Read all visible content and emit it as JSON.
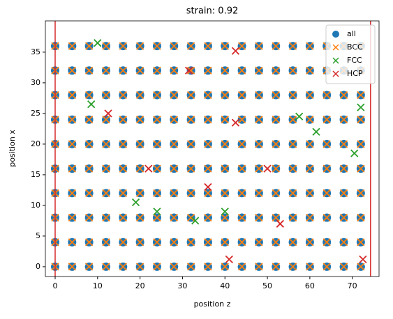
{
  "chart_data": {
    "type": "scatter",
    "title": "strain: 0.92",
    "xlabel": "position z",
    "ylabel": "position x",
    "xlim": [
      -2.3,
      76.3
    ],
    "ylim": [
      -1.6,
      40.1
    ],
    "xticks": [
      0,
      10,
      20,
      30,
      40,
      50,
      60,
      70
    ],
    "yticks": [
      0,
      5,
      10,
      15,
      20,
      25,
      30,
      35
    ],
    "legend": "upper right",
    "vlines": {
      "color": "#d62728",
      "values": [
        0,
        74.3
      ]
    },
    "series": [
      {
        "name": "all",
        "color": "#1f77b4",
        "marker": "o",
        "x": [
          0,
          4,
          8,
          12,
          16,
          20,
          24,
          28,
          32,
          36,
          40,
          44,
          48,
          52,
          56,
          60,
          64,
          68,
          72,
          0,
          4,
          8,
          12,
          16,
          20,
          24,
          28,
          32,
          36,
          40,
          44,
          48,
          52,
          56,
          60,
          64,
          68,
          72,
          0,
          4,
          8,
          12,
          16,
          20,
          24,
          28,
          32,
          36,
          40,
          44,
          48,
          52,
          56,
          60,
          64,
          68,
          72,
          0,
          4,
          8,
          12,
          16,
          20,
          24,
          28,
          32,
          36,
          40,
          44,
          48,
          52,
          56,
          60,
          64,
          68,
          72,
          0,
          4,
          8,
          12,
          16,
          20,
          24,
          28,
          32,
          36,
          40,
          44,
          48,
          52,
          56,
          60,
          64,
          68,
          72,
          0,
          4,
          8,
          12,
          16,
          20,
          24,
          28,
          32,
          36,
          40,
          44,
          48,
          52,
          56,
          60,
          64,
          68,
          72,
          0,
          4,
          8,
          12,
          16,
          20,
          24,
          28,
          32,
          36,
          40,
          44,
          48,
          52,
          56,
          60,
          64,
          68,
          72,
          0,
          4,
          8,
          12,
          16,
          20,
          24,
          28,
          32,
          36,
          40,
          44,
          48,
          52,
          56,
          60,
          64,
          68,
          72,
          0,
          4,
          8,
          12,
          16,
          20,
          24,
          28,
          32,
          36,
          40,
          44,
          48,
          52,
          56,
          60,
          64,
          68,
          72,
          0,
          4,
          8,
          12,
          16,
          20,
          24,
          28,
          32,
          36,
          40,
          44,
          48,
          52,
          56,
          60,
          64,
          68,
          72
        ],
        "y": [
          0,
          0,
          0,
          0,
          0,
          0,
          0,
          0,
          0,
          0,
          0,
          0,
          0,
          0,
          0,
          0,
          0,
          0,
          0,
          4,
          4,
          4,
          4,
          4,
          4,
          4,
          4,
          4,
          4,
          4,
          4,
          4,
          4,
          4,
          4,
          4,
          4,
          4,
          8,
          8,
          8,
          8,
          8,
          8,
          8,
          8,
          8,
          8,
          8,
          8,
          8,
          8,
          8,
          8,
          8,
          8,
          8,
          12,
          12,
          12,
          12,
          12,
          12,
          12,
          12,
          12,
          12,
          12,
          12,
          12,
          12,
          12,
          12,
          12,
          12,
          12,
          16,
          16,
          16,
          16,
          16,
          16,
          16,
          16,
          16,
          16,
          16,
          16,
          16,
          16,
          16,
          16,
          16,
          16,
          16,
          20,
          20,
          20,
          20,
          20,
          20,
          20,
          20,
          20,
          20,
          20,
          20,
          20,
          20,
          20,
          20,
          20,
          20,
          20,
          24,
          24,
          24,
          24,
          24,
          24,
          24,
          24,
          24,
          24,
          24,
          24,
          24,
          24,
          24,
          24,
          24,
          24,
          24,
          28,
          28,
          28,
          28,
          28,
          28,
          28,
          28,
          28,
          28,
          28,
          28,
          28,
          28,
          28,
          28,
          28,
          28,
          28,
          32,
          32,
          32,
          32,
          32,
          32,
          32,
          32,
          32,
          32,
          32,
          32,
          32,
          32,
          32,
          32,
          32,
          32,
          32,
          36,
          36,
          36,
          36,
          36,
          36,
          36,
          36,
          36,
          36,
          36,
          36,
          36,
          36,
          36,
          36,
          36,
          36,
          36
        ]
      },
      {
        "name": "BCC",
        "color": "#ff7f0e",
        "marker": "x",
        "x": [
          0,
          4,
          8,
          12,
          16,
          20,
          24,
          28,
          32,
          36,
          40,
          44,
          48,
          52,
          56,
          60,
          64,
          68,
          72,
          0,
          4,
          8,
          12,
          16,
          20,
          24,
          28,
          32,
          36,
          40,
          44,
          48,
          52,
          56,
          60,
          64,
          68,
          72,
          0,
          4,
          8,
          12,
          16,
          20,
          24,
          28,
          32,
          36,
          40,
          44,
          48,
          52,
          56,
          60,
          64,
          68,
          72,
          0,
          4,
          8,
          12,
          16,
          20,
          24,
          28,
          32,
          36,
          40,
          44,
          48,
          52,
          56,
          60,
          64,
          68,
          72,
          0,
          4,
          8,
          12,
          16,
          20,
          24,
          28,
          32,
          36,
          40,
          44,
          48,
          52,
          56,
          60,
          64,
          68,
          72,
          0,
          4,
          8,
          12,
          16,
          20,
          24,
          28,
          32,
          36,
          40,
          44,
          48,
          52,
          56,
          60,
          64,
          68,
          72,
          0,
          4,
          8,
          12,
          16,
          20,
          24,
          28,
          32,
          36,
          40,
          44,
          48,
          52,
          56,
          60,
          64,
          68,
          72,
          0,
          4,
          8,
          12,
          16,
          20,
          24,
          28,
          32,
          36,
          40,
          44,
          48,
          52,
          56,
          60,
          64,
          68,
          72,
          0,
          4,
          8,
          12,
          16,
          20,
          24,
          28,
          32,
          36,
          40,
          44,
          48,
          52,
          56,
          60,
          64,
          68,
          72,
          0,
          4,
          8,
          12,
          16,
          20,
          24,
          28,
          32,
          36,
          40,
          44,
          48,
          52,
          56,
          60,
          64,
          68,
          72
        ],
        "y": [
          0,
          0,
          0,
          0,
          0,
          0,
          0,
          0,
          0,
          0,
          0,
          0,
          0,
          0,
          0,
          0,
          0,
          0,
          0,
          4,
          4,
          4,
          4,
          4,
          4,
          4,
          4,
          4,
          4,
          4,
          4,
          4,
          4,
          4,
          4,
          4,
          4,
          4,
          8,
          8,
          8,
          8,
          8,
          8,
          8,
          8,
          8,
          8,
          8,
          8,
          8,
          8,
          8,
          8,
          8,
          8,
          8,
          12,
          12,
          12,
          12,
          12,
          12,
          12,
          12,
          12,
          12,
          12,
          12,
          12,
          12,
          12,
          12,
          12,
          12,
          12,
          16,
          16,
          16,
          16,
          16,
          16,
          16,
          16,
          16,
          16,
          16,
          16,
          16,
          16,
          16,
          16,
          16,
          16,
          16,
          20,
          20,
          20,
          20,
          20,
          20,
          20,
          20,
          20,
          20,
          20,
          20,
          20,
          20,
          20,
          20,
          20,
          20,
          20,
          24,
          24,
          24,
          24,
          24,
          24,
          24,
          24,
          24,
          24,
          24,
          24,
          24,
          24,
          24,
          24,
          24,
          24,
          24,
          28,
          28,
          28,
          28,
          28,
          28,
          28,
          28,
          28,
          28,
          28,
          28,
          28,
          28,
          28,
          28,
          28,
          28,
          28,
          32,
          32,
          32,
          32,
          32,
          32,
          32,
          32,
          32,
          32,
          32,
          32,
          32,
          32,
          32,
          32,
          32,
          32,
          32,
          36,
          36,
          36,
          36,
          36,
          36,
          36,
          36,
          36,
          36,
          36,
          36,
          36,
          36,
          36,
          36,
          36,
          36,
          36
        ]
      },
      {
        "name": "FCC",
        "color": "#2ca02c",
        "marker": "x",
        "x": [
          10,
          8.5,
          57.5,
          61.5,
          70.5,
          72,
          33,
          24,
          40,
          19
        ],
        "y": [
          36.5,
          26.5,
          24.5,
          22,
          18.5,
          26,
          7.5,
          9,
          9,
          10.5
        ]
      },
      {
        "name": "HCP",
        "color": "#d62728",
        "marker": "x",
        "x": [
          12.5,
          42.5,
          31.5,
          22,
          36,
          42.5,
          50,
          53,
          41,
          72.5
        ],
        "y": [
          25,
          35.2,
          32,
          16,
          13,
          23.5,
          16,
          7,
          1.2,
          1.2
        ]
      }
    ]
  }
}
